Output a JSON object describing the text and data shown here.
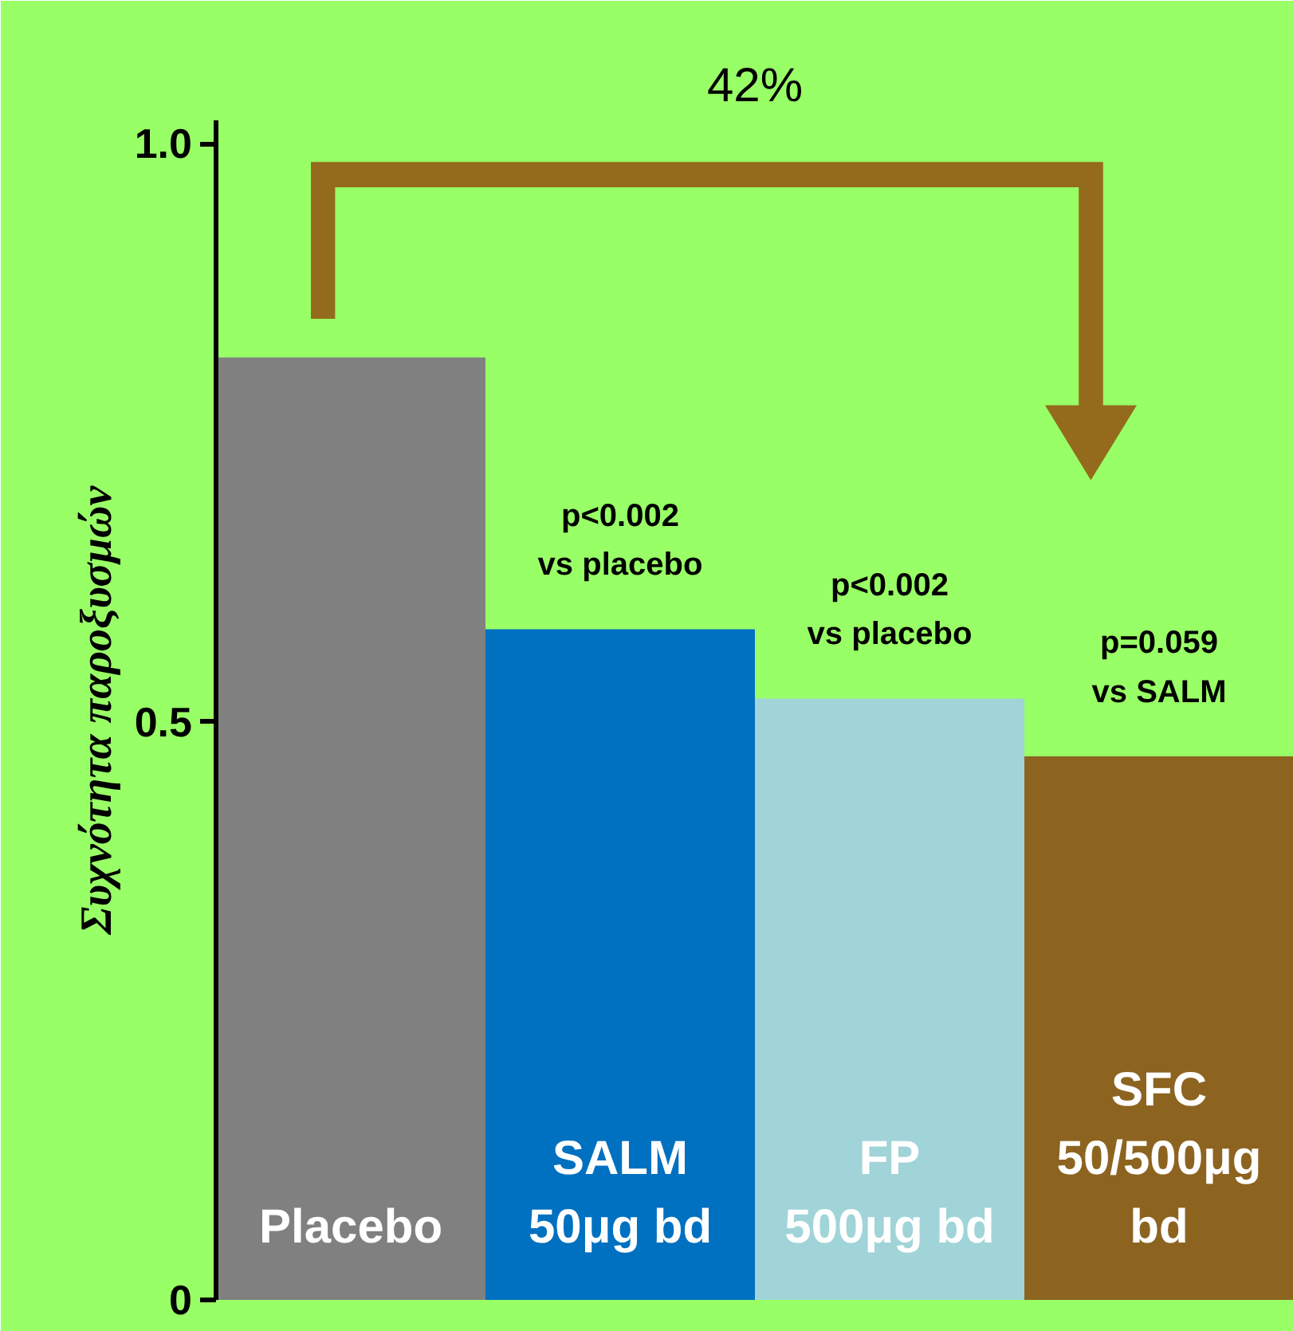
{
  "chart_data": {
    "type": "bar",
    "title": "42%",
    "ylabel": "Συχνότητα παροξυσμών",
    "categories": [
      "Placebo",
      "SALM\n50μg bd",
      "FP\n500μg bd",
      "SFC\n50/500μg\nbd"
    ],
    "values": [
      0.815,
      0.58,
      0.52,
      0.47
    ],
    "colors": [
      "#808080",
      "#0070c0",
      "#a0d4d8",
      "#8c6420"
    ],
    "ylim": [
      0,
      1.02
    ],
    "yticks": [
      0,
      0.5,
      {
        "value": 1,
        "label": "1.0"
      }
    ],
    "tick_labels": "y",
    "grid": false,
    "annotations": [
      "p<0.002\nvs placebo",
      "p<0.002\nvs placebo",
      "p=0.059\nvs SALM"
    ]
  }
}
